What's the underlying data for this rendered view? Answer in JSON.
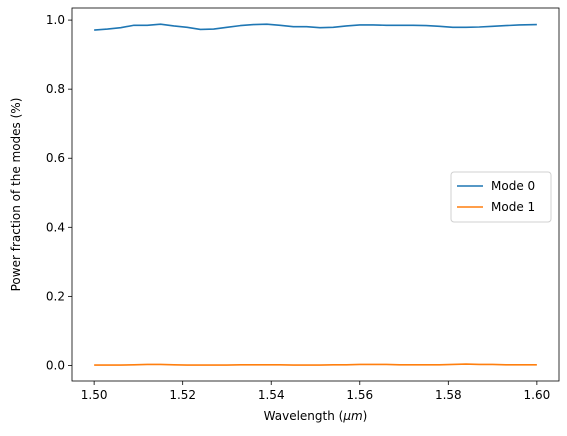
{
  "chart_data": {
    "type": "line",
    "xlabel": "Wavelength (",
    "xlabel_unit": "μm",
    "xlabel_close": ")",
    "ylabel": "Power fraction of the modes (%)",
    "xlim": [
      1.495,
      1.605
    ],
    "ylim": [
      -0.045,
      1.035
    ],
    "x_ticks": [
      1.5,
      1.52,
      1.54,
      1.56,
      1.58,
      1.6
    ],
    "x_tick_labels": [
      "1.50",
      "1.52",
      "1.54",
      "1.56",
      "1.58",
      "1.60"
    ],
    "y_ticks": [
      0.0,
      0.2,
      0.4,
      0.6,
      0.8,
      1.0
    ],
    "y_tick_labels": [
      "0.0",
      "0.2",
      "0.4",
      "0.6",
      "0.8",
      "1.0"
    ],
    "grid": false,
    "legend_position": "center-right",
    "series": [
      {
        "name": "Mode 0",
        "color": "#1f77b4",
        "x": [
          1.5,
          1.503,
          1.506,
          1.509,
          1.512,
          1.515,
          1.518,
          1.521,
          1.524,
          1.527,
          1.53,
          1.533,
          1.536,
          1.539,
          1.542,
          1.545,
          1.548,
          1.551,
          1.554,
          1.557,
          1.56,
          1.563,
          1.566,
          1.569,
          1.572,
          1.575,
          1.578,
          1.581,
          1.584,
          1.587,
          1.59,
          1.593,
          1.596,
          1.6
        ],
        "y": [
          0.971,
          0.974,
          0.978,
          0.985,
          0.985,
          0.988,
          0.983,
          0.979,
          0.973,
          0.974,
          0.979,
          0.984,
          0.987,
          0.988,
          0.985,
          0.981,
          0.981,
          0.978,
          0.979,
          0.983,
          0.986,
          0.986,
          0.985,
          0.985,
          0.985,
          0.984,
          0.982,
          0.979,
          0.979,
          0.98,
          0.982,
          0.984,
          0.986,
          0.987
        ]
      },
      {
        "name": "Mode 1",
        "color": "#ff7f0e",
        "x": [
          1.5,
          1.503,
          1.506,
          1.509,
          1.512,
          1.515,
          1.518,
          1.521,
          1.524,
          1.527,
          1.53,
          1.533,
          1.536,
          1.539,
          1.542,
          1.545,
          1.548,
          1.551,
          1.554,
          1.557,
          1.56,
          1.563,
          1.566,
          1.569,
          1.572,
          1.575,
          1.578,
          1.581,
          1.584,
          1.587,
          1.59,
          1.593,
          1.596,
          1.6
        ],
        "y": [
          0.001,
          0.001,
          0.001,
          0.002,
          0.003,
          0.003,
          0.002,
          0.001,
          0.001,
          0.001,
          0.001,
          0.002,
          0.002,
          0.002,
          0.002,
          0.001,
          0.001,
          0.001,
          0.002,
          0.002,
          0.003,
          0.003,
          0.003,
          0.002,
          0.002,
          0.002,
          0.002,
          0.003,
          0.004,
          0.003,
          0.003,
          0.002,
          0.002,
          0.002
        ]
      }
    ]
  }
}
